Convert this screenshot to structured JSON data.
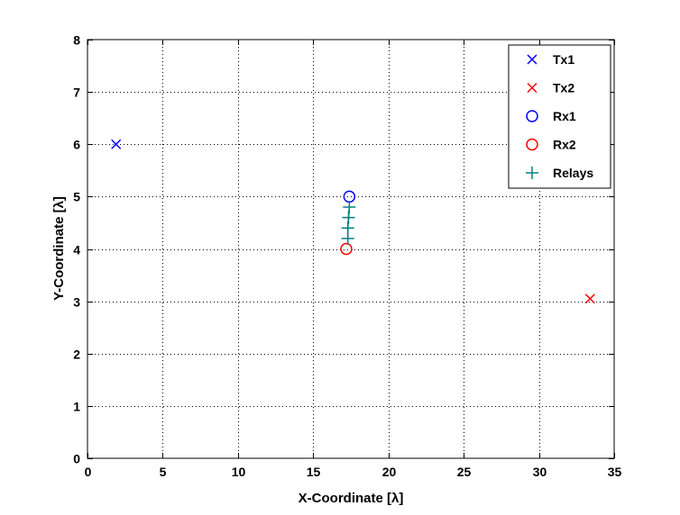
{
  "chart_data": {
    "type": "scatter",
    "title": "",
    "xlabel": "X-Coordinate [λ]",
    "ylabel": "Y-Coordinate [λ]",
    "xlim": [
      0,
      35
    ],
    "ylim": [
      0,
      8
    ],
    "xticks": [
      0,
      5,
      10,
      15,
      20,
      25,
      30,
      35
    ],
    "yticks": [
      0,
      1,
      2,
      3,
      4,
      5,
      6,
      7,
      8
    ],
    "xtick_labels": [
      "0",
      "5",
      "10",
      "15",
      "20",
      "25",
      "30",
      "35"
    ],
    "ytick_labels": [
      "0",
      "1",
      "2",
      "3",
      "4",
      "5",
      "6",
      "7",
      "8"
    ],
    "grid": true,
    "legend_position": "top-right",
    "series": [
      {
        "name": "Tx1",
        "marker": "x",
        "color": "#0000ff",
        "points": [
          [
            1.9,
            6.0
          ]
        ]
      },
      {
        "name": "Tx2",
        "marker": "x",
        "color": "#ff0000",
        "points": [
          [
            33.4,
            3.05
          ]
        ]
      },
      {
        "name": "Rx1",
        "marker": "o",
        "color": "#0000ff",
        "points": [
          [
            17.4,
            5.0
          ]
        ]
      },
      {
        "name": "Rx2",
        "marker": "o",
        "color": "#ff0000",
        "points": [
          [
            17.2,
            4.0
          ]
        ]
      },
      {
        "name": "Relays",
        "marker": "+",
        "color": "#008080",
        "points": [
          [
            17.4,
            4.8
          ],
          [
            17.35,
            4.6
          ],
          [
            17.3,
            4.4
          ],
          [
            17.3,
            4.2
          ]
        ]
      }
    ]
  }
}
